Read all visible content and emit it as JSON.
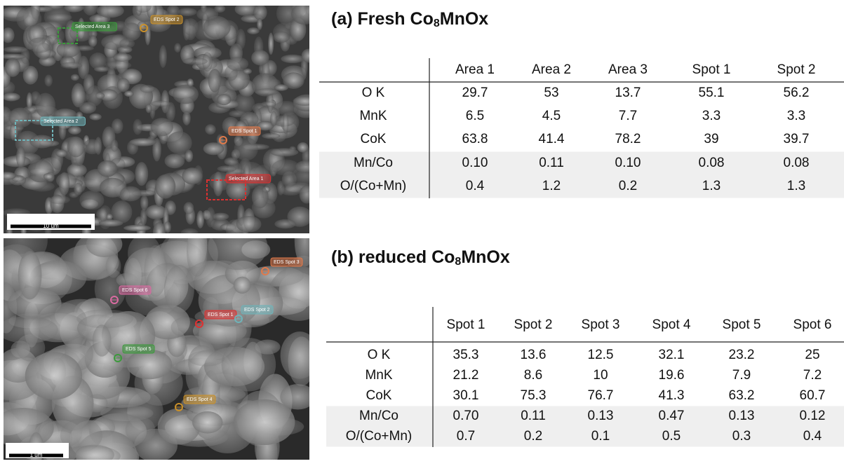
{
  "images": [
    {
      "annotations": [
        "Selected Area 3",
        "EDS Spot 2",
        "Selected Area 2",
        "EDS Spot 1",
        "Selected Area 1"
      ],
      "scale_bar": "10 um"
    },
    {
      "annotations": [
        "EDS Spot 3",
        "EDS Spot 6",
        "EDS Spot 1",
        "EDS Spot 2",
        "EDS Spot 5",
        "EDS Spot 4"
      ],
      "scale_bar": "1 um"
    }
  ],
  "tables": [
    {
      "title": {
        "text": "(a) Fresh Co",
        "sub": "8",
        "rest": "MnOx"
      },
      "header": [
        "Area 1",
        "Area 2",
        "Area 3",
        "Spot 1",
        "Spot 2"
      ],
      "rows": [
        [
          "O K",
          "29.7",
          "53",
          "13.7",
          "55.1",
          "56.2"
        ],
        [
          "MnK",
          "6.5",
          "4.5",
          "7.7",
          "3.3",
          "3.3"
        ],
        [
          "CoK",
          "63.8",
          "41.4",
          "78.2",
          "39",
          "39.7"
        ],
        [
          "Mn/Co",
          "0.10",
          "0.11",
          "0.10",
          "0.08",
          "0.08"
        ],
        [
          "O/(Co+Mn)",
          "0.4",
          "1.2",
          "0.2",
          "1.3",
          "1.3"
        ]
      ]
    },
    {
      "title": {
        "text": "(b) reduced Co",
        "sub": "8",
        "rest": "MnOx"
      },
      "header": [
        "Spot 1",
        "Spot 2",
        "Spot 3",
        "Spot 4",
        "Spot 5",
        "Spot 6"
      ],
      "rows": [
        [
          "O K",
          "35.3",
          "13.6",
          "12.5",
          "32.1",
          "23.2",
          "25"
        ],
        [
          "MnK",
          "21.2",
          "8.6",
          "10",
          "19.6",
          "7.9",
          "7.2"
        ],
        [
          "CoK",
          "30.1",
          "75.3",
          "76.7",
          "41.3",
          "63.2",
          "60.7"
        ],
        [
          "Mn/Co",
          "0.70",
          "0.11",
          "0.13",
          "0.47",
          "0.13",
          "0.12"
        ],
        [
          "O/(Co+Mn)",
          "0.7",
          "0.2",
          "0.1",
          "0.5",
          "0.3",
          "0.4"
        ]
      ]
    }
  ]
}
